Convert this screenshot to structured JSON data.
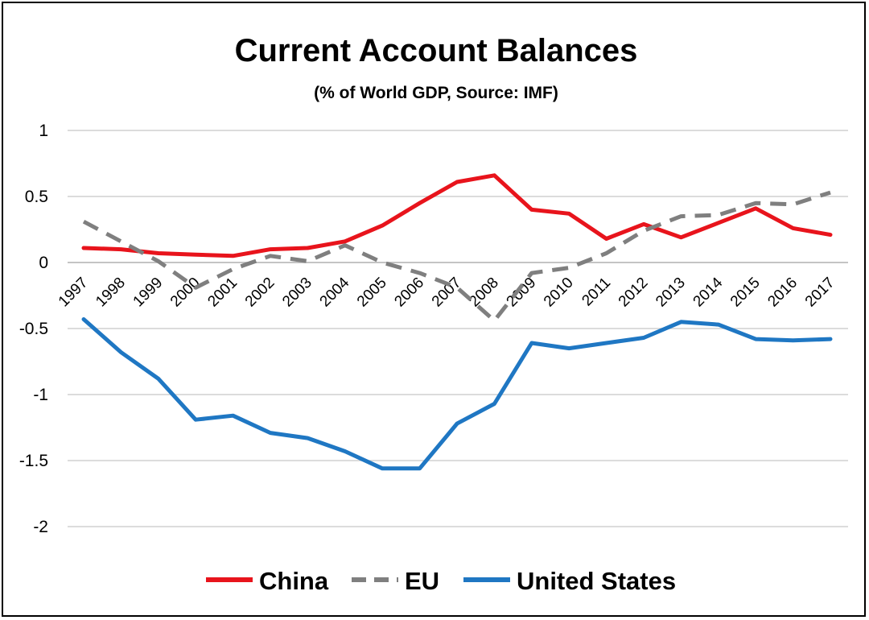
{
  "chart_data": {
    "type": "line",
    "title": "Current Account Balances",
    "subtitle": "(% of World GDP, Source: IMF)",
    "xlabel": "",
    "ylabel": "",
    "ylim": [
      -2,
      1
    ],
    "yticks": [
      1,
      0.5,
      0,
      -0.5,
      -1,
      -1.5,
      -2
    ],
    "ytick_labels": [
      "1",
      "0.5",
      "0",
      "-0.5",
      "-1",
      "-1.5",
      "-2"
    ],
    "grid": true,
    "legend_position": "bottom",
    "x": [
      "1997",
      "1998",
      "1999",
      "2000",
      "2001",
      "2002",
      "2003",
      "2004",
      "2005",
      "2006",
      "2007",
      "2008",
      "2009",
      "2010",
      "2011",
      "2012",
      "2013",
      "2014",
      "2015",
      "2016",
      "2017"
    ],
    "series": [
      {
        "name": "China",
        "color": "#e8141c",
        "dash": "solid",
        "values": [
          0.11,
          0.1,
          0.07,
          0.06,
          0.05,
          0.1,
          0.11,
          0.16,
          0.28,
          0.45,
          0.61,
          0.66,
          0.4,
          0.37,
          0.18,
          0.29,
          0.19,
          0.3,
          0.41,
          0.26,
          0.21
        ]
      },
      {
        "name": "EU",
        "color": "#7f7f7f",
        "dash": "dashed",
        "values": [
          0.31,
          0.16,
          0.01,
          -0.19,
          -0.05,
          0.05,
          0.01,
          0.13,
          0.0,
          -0.08,
          -0.19,
          -0.44,
          -0.08,
          -0.04,
          0.07,
          0.24,
          0.35,
          0.36,
          0.45,
          0.44,
          0.53
        ]
      },
      {
        "name": "United States",
        "color": "#1f77c3",
        "dash": "solid",
        "values": [
          -0.43,
          -0.68,
          -0.88,
          -1.19,
          -1.16,
          -1.29,
          -1.33,
          -1.43,
          -1.56,
          -1.56,
          -1.22,
          -1.07,
          -0.61,
          -0.65,
          -0.61,
          -0.57,
          -0.45,
          -0.47,
          -0.58,
          -0.59,
          -0.58
        ]
      }
    ]
  }
}
